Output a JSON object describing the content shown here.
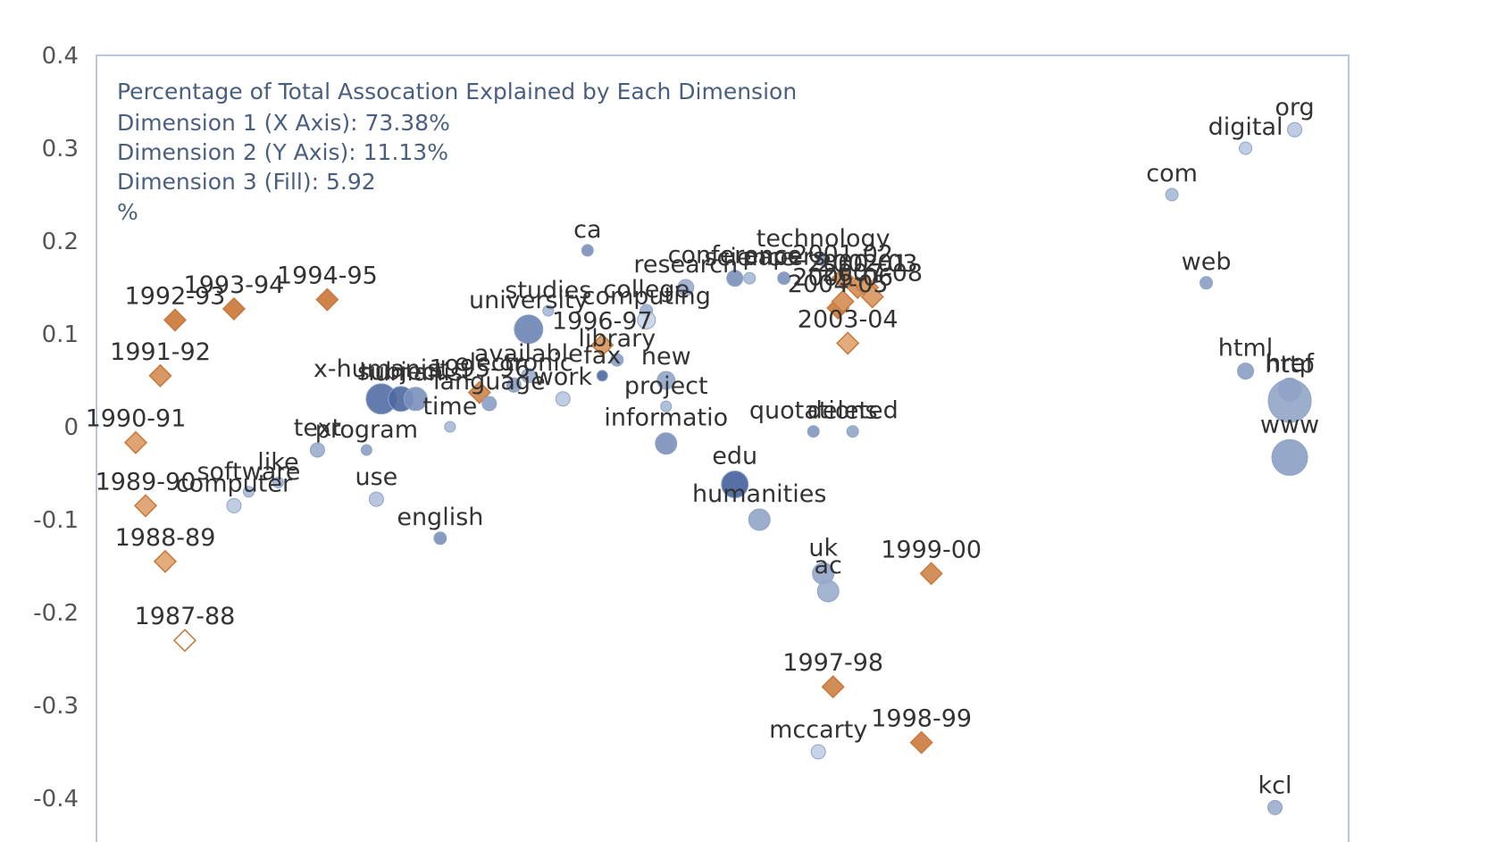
{
  "chart_data": {
    "type": "scatter",
    "title": "",
    "xlabel": "",
    "ylabel": "",
    "ylim": [
      -0.4,
      0.4
    ],
    "xlim": [
      -1.0,
      1.55
    ],
    "yticks": [
      {
        "value": 0.4,
        "label": "0.4"
      },
      {
        "value": 0.3,
        "label": "0.3"
      },
      {
        "value": 0.2,
        "label": "0.2"
      },
      {
        "value": 0.1,
        "label": "0.1"
      },
      {
        "value": 0.0,
        "label": "0"
      },
      {
        "value": -0.1,
        "label": "-0.1"
      },
      {
        "value": -0.2,
        "label": "-0.2"
      },
      {
        "value": -0.3,
        "label": "-0.3"
      },
      {
        "value": -0.4,
        "label": "-0.4"
      }
    ],
    "info_lines": [
      "Percentage of Total Assocation Explained by Each Dimension",
      "Dimension 1 (X Axis): 73.38%",
      "Dimension 2 (Y Axis): 11.13%",
      "Dimension 3 (Fill): 5.92",
      "%"
    ],
    "colors": {
      "axis": "#b8c8e0",
      "year_strong": "#c8783c",
      "year_light": "#f0c8a0",
      "word_strong": "#3c5a96",
      "word_light": "#d8e2f0"
    },
    "series": [
      {
        "name": "years",
        "points": [
          {
            "label": "1987-88",
            "x": -0.82,
            "y": -0.23,
            "fill": 0.0
          },
          {
            "label": "1988-89",
            "x": -0.86,
            "y": -0.145,
            "fill": 0.35
          },
          {
            "label": "1989-90",
            "x": -0.9,
            "y": -0.085,
            "fill": 0.4
          },
          {
            "label": "1990-91",
            "x": -0.92,
            "y": -0.017,
            "fill": 0.45
          },
          {
            "label": "1991-92",
            "x": -0.87,
            "y": 0.055,
            "fill": 0.6
          },
          {
            "label": "1992-93",
            "x": -0.84,
            "y": 0.115,
            "fill": 0.85
          },
          {
            "label": "1993-94",
            "x": -0.72,
            "y": 0.127,
            "fill": 0.85
          },
          {
            "label": "1994-95",
            "x": -0.53,
            "y": 0.137,
            "fill": 0.85
          },
          {
            "label": "1995-96",
            "x": -0.22,
            "y": 0.037,
            "fill": 0.7
          },
          {
            "label": "1996-97",
            "x": 0.03,
            "y": 0.088,
            "fill": 0.5
          },
          {
            "label": "1997-98",
            "x": 0.5,
            "y": -0.28,
            "fill": 0.75
          },
          {
            "label": "1998-99",
            "x": 0.68,
            "y": -0.34,
            "fill": 0.8
          },
          {
            "label": "1999-00",
            "x": 0.7,
            "y": -0.158,
            "fill": 0.7
          },
          {
            "label": "2000-01",
            "x": 0.55,
            "y": 0.15,
            "fill": 0.6
          },
          {
            "label": "2001-02",
            "x": 0.52,
            "y": 0.16,
            "fill": 0.6
          },
          {
            "label": "2002-03",
            "x": 0.57,
            "y": 0.15,
            "fill": 0.55
          },
          {
            "label": "2003-04",
            "x": 0.53,
            "y": 0.09,
            "fill": 0.35
          },
          {
            "label": "2004-05",
            "x": 0.51,
            "y": 0.128,
            "fill": 0.8
          },
          {
            "label": "2005-06",
            "x": 0.52,
            "y": 0.135,
            "fill": 0.6
          },
          {
            "label": "2007-08",
            "x": 0.58,
            "y": 0.14,
            "fill": 0.5
          }
        ]
      },
      {
        "name": "words",
        "points": [
          {
            "label": "org",
            "x": 1.44,
            "y": 0.32,
            "fill": 0.2,
            "size": 16
          },
          {
            "label": "digital",
            "x": 1.34,
            "y": 0.3,
            "fill": 0.2,
            "size": 14
          },
          {
            "label": "com",
            "x": 1.19,
            "y": 0.25,
            "fill": 0.3,
            "size": 14
          },
          {
            "label": "web",
            "x": 1.26,
            "y": 0.155,
            "fill": 0.5,
            "size": 14
          },
          {
            "label": "html",
            "x": 1.34,
            "y": 0.06,
            "fill": 0.5,
            "size": 18
          },
          {
            "label": "href",
            "x": 1.43,
            "y": 0.04,
            "fill": 0.6,
            "size": 26
          },
          {
            "label": "http",
            "x": 1.43,
            "y": 0.028,
            "fill": 0.45,
            "size": 48
          },
          {
            "label": "www",
            "x": 1.43,
            "y": -0.033,
            "fill": 0.5,
            "size": 40
          },
          {
            "label": "kcl",
            "x": 1.4,
            "y": -0.41,
            "fill": 0.4,
            "size": 16
          },
          {
            "label": "ca",
            "x": 0.0,
            "y": 0.19,
            "fill": 0.6,
            "size": 13
          },
          {
            "label": "technology",
            "x": 0.48,
            "y": 0.18,
            "fill": 0.5,
            "size": 14
          },
          {
            "label": "conference",
            "x": 0.3,
            "y": 0.16,
            "fill": 0.6,
            "size": 18
          },
          {
            "label": "science",
            "x": 0.33,
            "y": 0.16,
            "fill": 0.3,
            "size": 13
          },
          {
            "label": "papers",
            "x": 0.4,
            "y": 0.16,
            "fill": 0.6,
            "size": 14
          },
          {
            "label": "research",
            "x": 0.2,
            "y": 0.15,
            "fill": 0.4,
            "size": 18
          },
          {
            "label": "college",
            "x": 0.12,
            "y": 0.125,
            "fill": 0.4,
            "size": 14
          },
          {
            "label": "computing",
            "x": 0.12,
            "y": 0.115,
            "fill": 0.1,
            "size": 20
          },
          {
            "label": "studies",
            "x": -0.08,
            "y": 0.125,
            "fill": 0.3,
            "size": 12
          },
          {
            "label": "university",
            "x": -0.12,
            "y": 0.105,
            "fill": 0.7,
            "size": 32
          },
          {
            "label": "library",
            "x": 0.06,
            "y": 0.072,
            "fill": 0.5,
            "size": 14
          },
          {
            "label": "fax",
            "x": 0.03,
            "y": 0.055,
            "fill": 0.9,
            "size": 12
          },
          {
            "label": "new",
            "x": 0.16,
            "y": 0.05,
            "fill": 0.45,
            "size": 20
          },
          {
            "label": "project",
            "x": 0.16,
            "y": 0.022,
            "fill": 0.3,
            "size": 12
          },
          {
            "label": "available",
            "x": -0.12,
            "y": 0.055,
            "fill": 0.4,
            "size": 16
          },
          {
            "label": "electronic",
            "x": -0.15,
            "y": 0.045,
            "fill": 0.5,
            "size": 16
          },
          {
            "label": "work",
            "x": -0.05,
            "y": 0.03,
            "fill": 0.2,
            "size": 16
          },
          {
            "label": "language",
            "x": -0.2,
            "y": 0.025,
            "fill": 0.5,
            "size": 16
          },
          {
            "label": "x-humanist",
            "x": -0.42,
            "y": 0.03,
            "fill": 0.85,
            "size": 34
          },
          {
            "label": "subject",
            "x": -0.38,
            "y": 0.03,
            "fill": 0.9,
            "size": 28
          },
          {
            "label": "humanist",
            "x": -0.35,
            "y": 0.03,
            "fill": 0.6,
            "size": 26
          },
          {
            "label": "time",
            "x": -0.28,
            "y": 0.0,
            "fill": 0.3,
            "size": 12
          },
          {
            "label": "program",
            "x": -0.45,
            "y": -0.025,
            "fill": 0.5,
            "size": 12
          },
          {
            "label": "text",
            "x": -0.55,
            "y": -0.025,
            "fill": 0.4,
            "size": 16
          },
          {
            "label": "like",
            "x": -0.63,
            "y": -0.06,
            "fill": 0.35,
            "size": 12
          },
          {
            "label": "software",
            "x": -0.69,
            "y": -0.07,
            "fill": 0.3,
            "size": 12
          },
          {
            "label": "computer",
            "x": -0.72,
            "y": -0.085,
            "fill": 0.2,
            "size": 16
          },
          {
            "label": "use",
            "x": -0.43,
            "y": -0.078,
            "fill": 0.25,
            "size": 16
          },
          {
            "label": "english",
            "x": -0.3,
            "y": -0.12,
            "fill": 0.6,
            "size": 14
          },
          {
            "label": "informatio",
            "x": 0.16,
            "y": -0.018,
            "fill": 0.6,
            "size": 24
          },
          {
            "label": "edu",
            "x": 0.3,
            "y": -0.062,
            "fill": 0.95,
            "size": 30
          },
          {
            "label": "humanities",
            "x": 0.35,
            "y": -0.1,
            "fill": 0.45,
            "size": 24
          },
          {
            "label": "quotations",
            "x": 0.46,
            "y": -0.005,
            "fill": 0.55,
            "size": 13
          },
          {
            "label": "deleted",
            "x": 0.54,
            "y": -0.005,
            "fill": 0.45,
            "size": 13
          },
          {
            "label": "uk",
            "x": 0.48,
            "y": -0.158,
            "fill": 0.45,
            "size": 24
          },
          {
            "label": "ac",
            "x": 0.49,
            "y": -0.177,
            "fill": 0.4,
            "size": 24
          },
          {
            "label": "mccarty",
            "x": 0.47,
            "y": -0.35,
            "fill": 0.15,
            "size": 16
          }
        ]
      }
    ]
  }
}
